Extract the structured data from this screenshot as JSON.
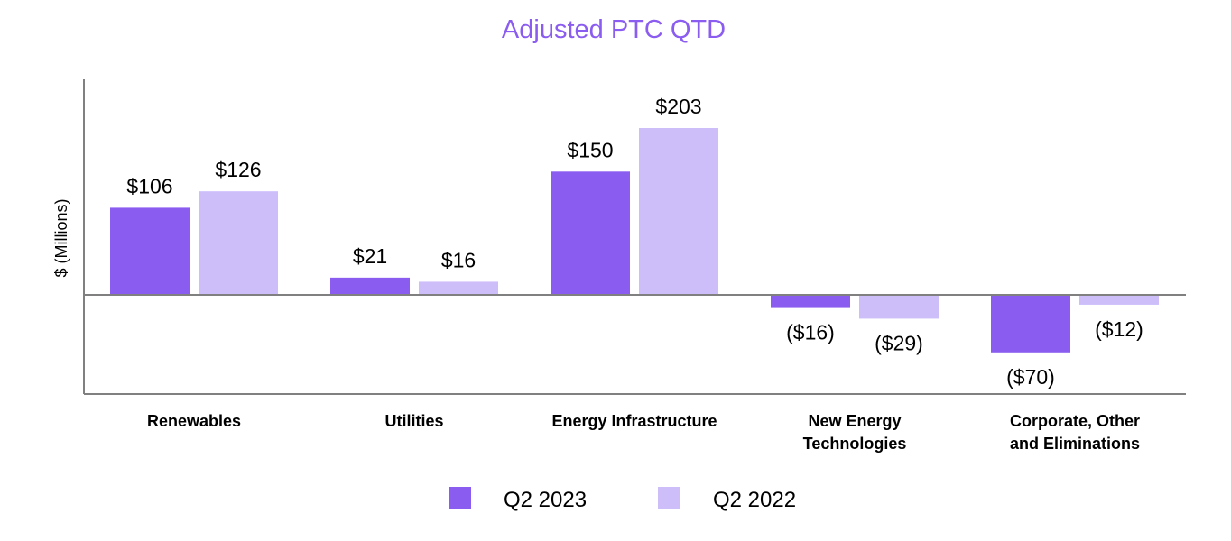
{
  "chart_data": {
    "type": "bar",
    "title": "Adjusted PTC QTD",
    "ylabel": "$ (Millions)",
    "xlabel": "",
    "categories": [
      [
        "Renewables"
      ],
      [
        "Utilities"
      ],
      [
        "Energy Infrastructure"
      ],
      [
        "New Energy",
        "Technologies"
      ],
      [
        "Corporate, Other",
        "and Eliminations"
      ]
    ],
    "series": [
      {
        "name": "Q2 2023",
        "color": "#8B5CF0",
        "values": [
          106,
          21,
          150,
          -16,
          -70
        ],
        "labels": [
          "$106",
          "$21",
          "$150",
          "($16)",
          "($70)"
        ]
      },
      {
        "name": "Q2 2022",
        "color": "#CDBEFA",
        "values": [
          126,
          16,
          203,
          -29,
          -12
        ],
        "labels": [
          "$126",
          "$16",
          "$203",
          "($29)",
          "($12)"
        ]
      }
    ],
    "ylim": [
      -120,
      260
    ],
    "grid": false,
    "legend": "bottom-center",
    "colors": {
      "title": "#8B5CF0",
      "axis": "#808080",
      "zero_line": "#808080"
    }
  }
}
